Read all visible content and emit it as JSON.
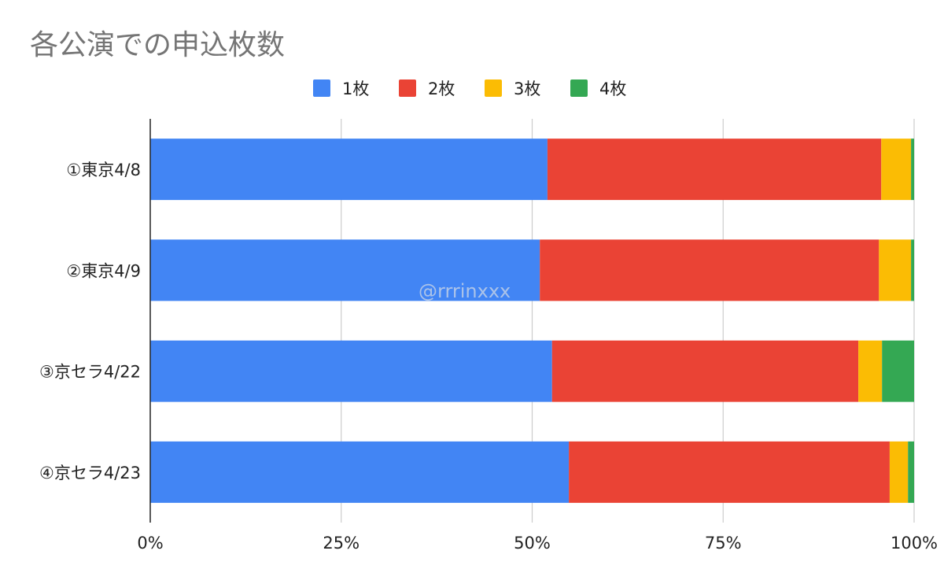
{
  "chart_data": {
    "type": "bar",
    "orientation": "horizontal",
    "stacked": "percent",
    "title": "各公演での申込枚数",
    "categories": [
      "①東京4/8",
      "②東京4/9",
      "③京セラ4/22",
      "④京セラ4/23"
    ],
    "series": [
      {
        "name": "1枚",
        "color": "#4285f4",
        "values": [
          52.0,
          51.0,
          52.6,
          54.8
        ]
      },
      {
        "name": "2枚",
        "color": "#ea4335",
        "values": [
          43.7,
          44.4,
          40.1,
          42.0
        ]
      },
      {
        "name": "3枚",
        "color": "#fbbc04",
        "values": [
          3.9,
          4.2,
          3.1,
          2.4
        ]
      },
      {
        "name": "4枚",
        "color": "#34a853",
        "values": [
          0.4,
          0.4,
          4.2,
          0.8
        ]
      }
    ],
    "xlim": [
      0,
      100
    ],
    "xticks": [
      0,
      25,
      50,
      75,
      100
    ],
    "xtick_labels": [
      "0%",
      "25%",
      "50%",
      "75%",
      "100%"
    ],
    "grid": "vertical",
    "legend_position": "top",
    "watermark": "@rrrinxxx"
  }
}
